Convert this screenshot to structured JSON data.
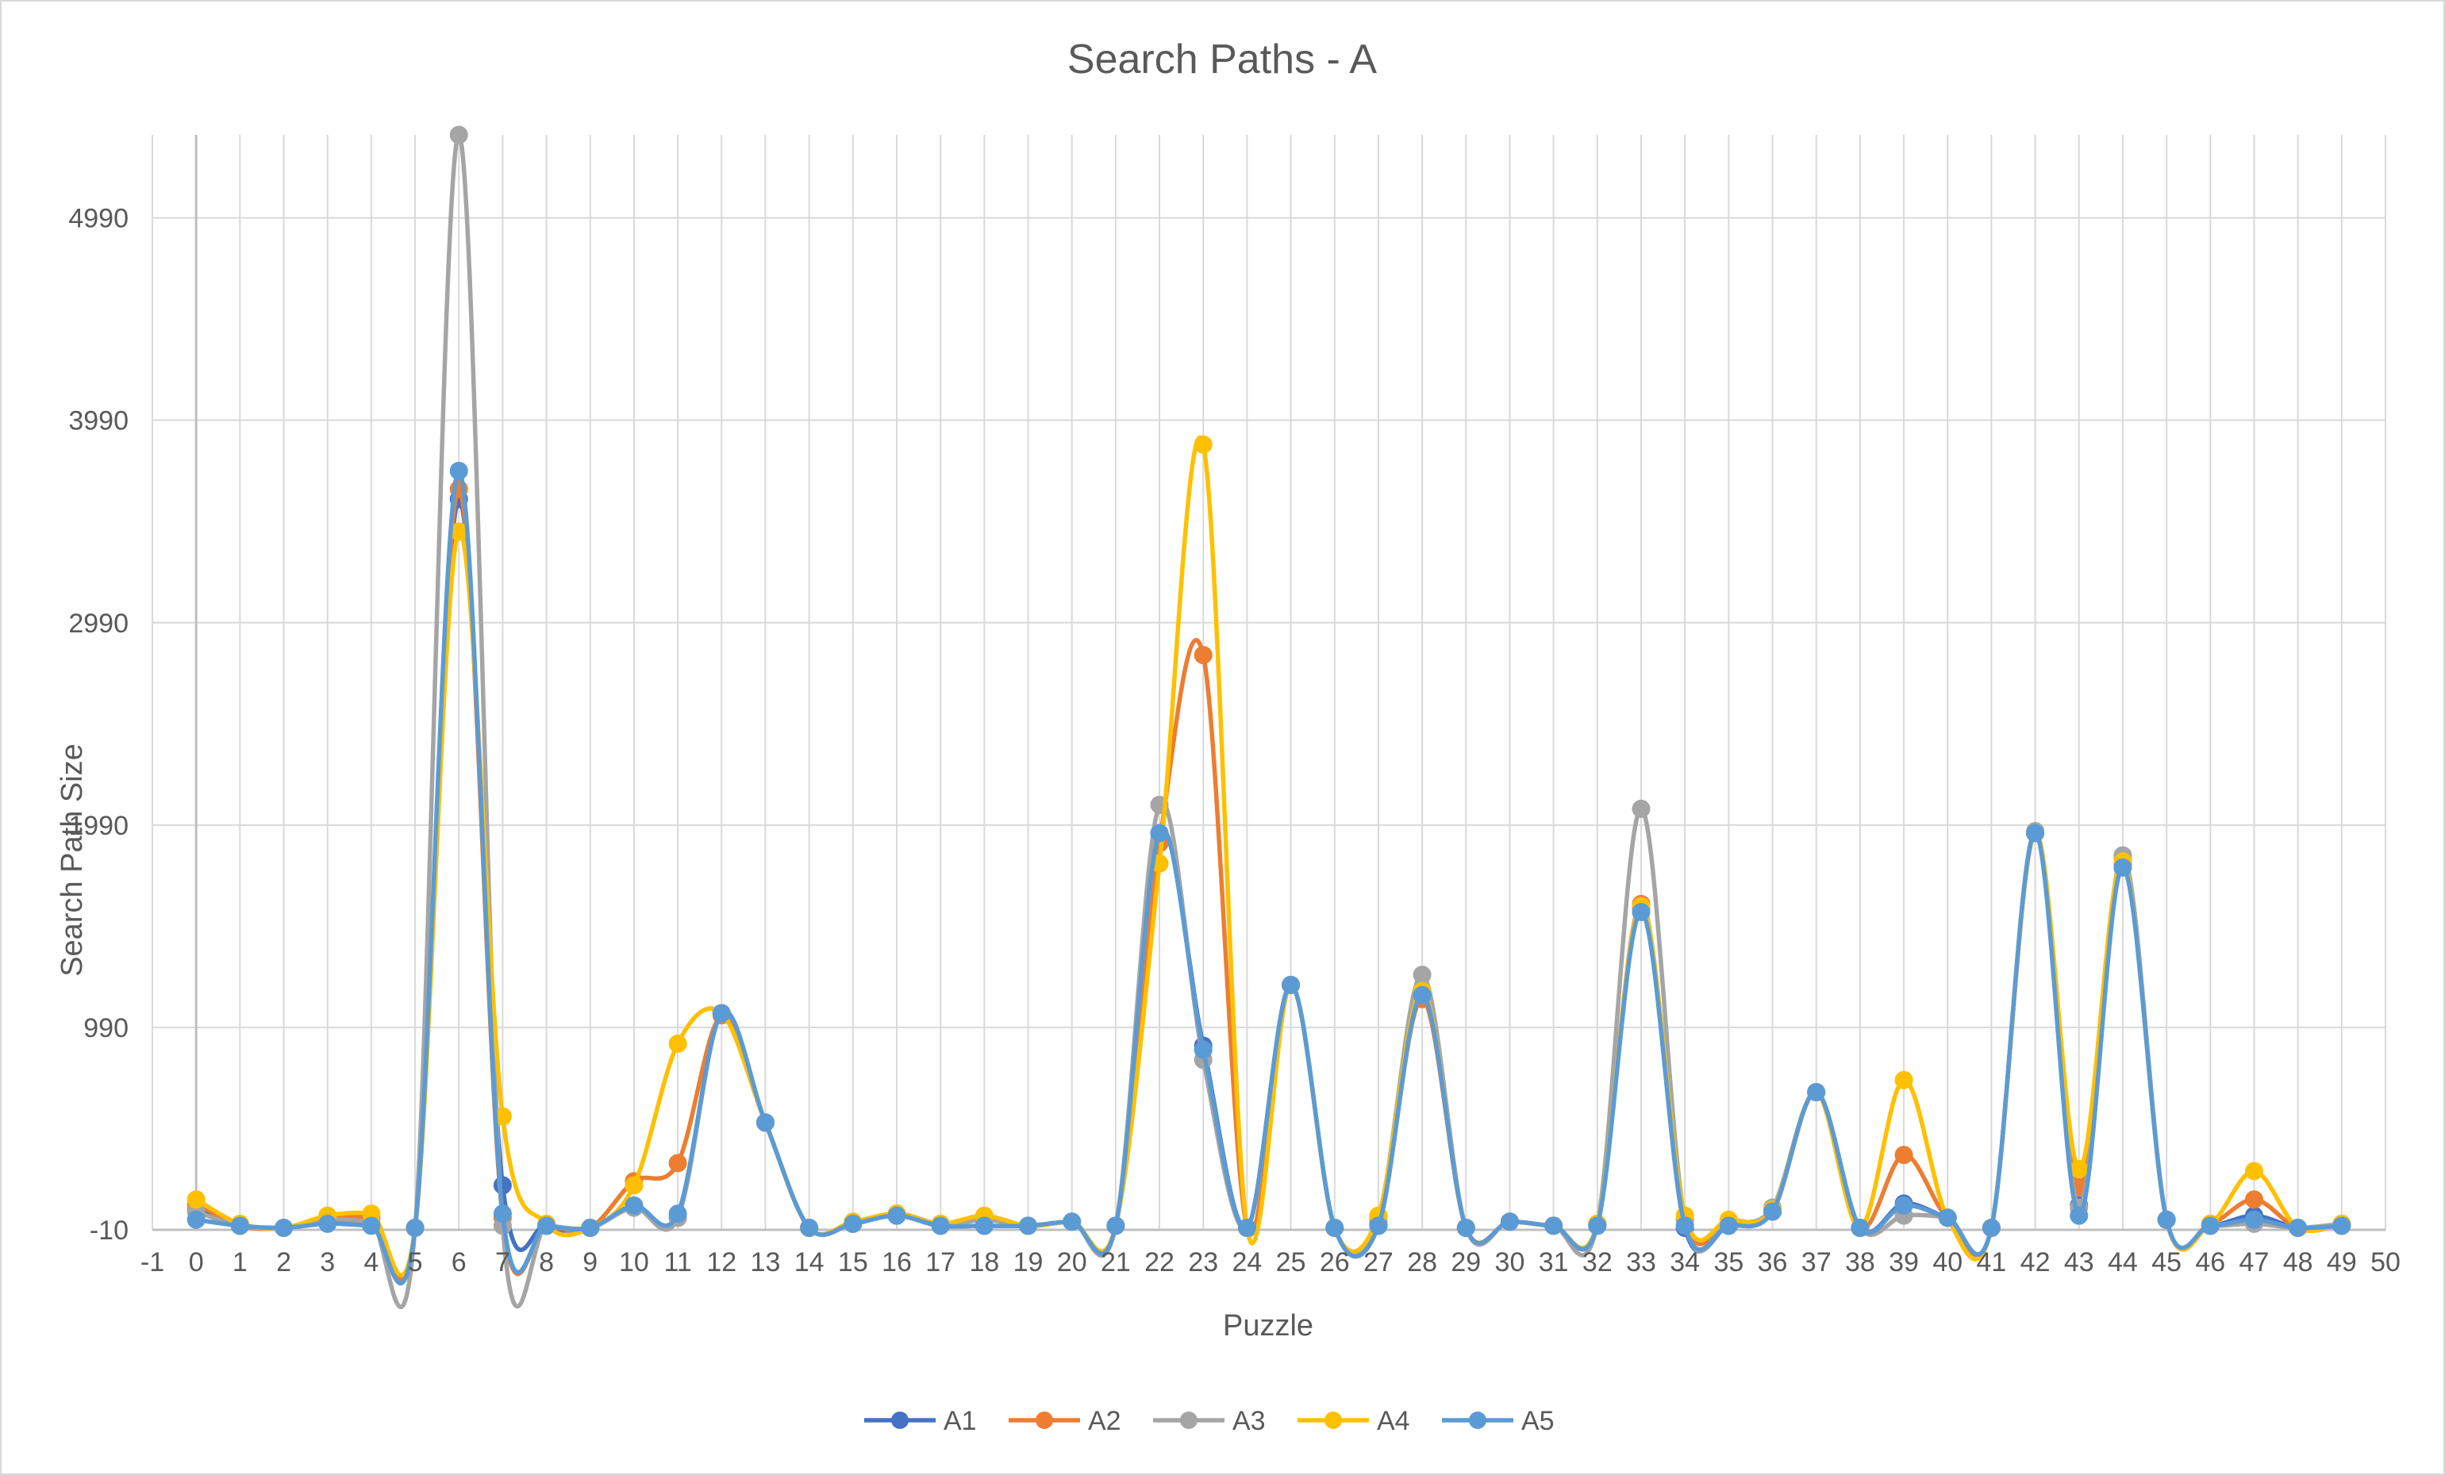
{
  "chart_data": {
    "type": "line",
    "smooth": true,
    "markers": true,
    "title": "Search Paths - A",
    "xlabel": "Puzzle",
    "ylabel": "Search Path Size",
    "xlim": [
      -1,
      50
    ],
    "xticks": [
      -1,
      0,
      1,
      2,
      3,
      4,
      5,
      6,
      7,
      8,
      9,
      10,
      11,
      12,
      13,
      14,
      15,
      16,
      17,
      18,
      19,
      20,
      21,
      22,
      23,
      24,
      25,
      26,
      27,
      28,
      29,
      30,
      31,
      32,
      33,
      34,
      35,
      36,
      37,
      38,
      39,
      40,
      41,
      42,
      43,
      44,
      45,
      46,
      47,
      48,
      49,
      50
    ],
    "ylim": [
      -10,
      5400
    ],
    "yticks": [
      -10,
      990,
      1990,
      2990,
      3990,
      4990
    ],
    "grid": true,
    "legend_position": "bottom",
    "x": [
      0,
      1,
      2,
      3,
      4,
      5,
      6,
      7,
      8,
      9,
      10,
      11,
      12,
      13,
      14,
      15,
      16,
      17,
      18,
      19,
      20,
      21,
      22,
      23,
      24,
      25,
      26,
      27,
      28,
      29,
      30,
      31,
      32,
      33,
      34,
      35,
      36,
      37,
      38,
      39,
      40,
      41,
      42,
      43,
      44,
      45,
      46,
      47,
      48,
      49
    ],
    "series": [
      {
        "name": "A1",
        "color": "#4472C4",
        "values": [
          90,
          10,
          0,
          30,
          20,
          0,
          3600,
          210,
          10,
          0,
          100,
          50,
          1060,
          520,
          0,
          20,
          60,
          10,
          10,
          10,
          30,
          10,
          1950,
          900,
          0,
          1200,
          0,
          10,
          1150,
          0,
          30,
          10,
          10,
          1580,
          0,
          10,
          80,
          670,
          0,
          120,
          50,
          0,
          1950,
          110,
          1800,
          40,
          10,
          60,
          0,
          10
        ]
      },
      {
        "name": "A2",
        "color": "#ED7D31",
        "values": [
          120,
          10,
          0,
          50,
          50,
          0,
          3650,
          50,
          10,
          0,
          230,
          320,
          1050,
          520,
          0,
          20,
          70,
          20,
          50,
          10,
          30,
          10,
          1900,
          2830,
          0,
          1200,
          0,
          30,
          1130,
          0,
          30,
          10,
          20,
          1600,
          40,
          30,
          80,
          670,
          0,
          360,
          50,
          0,
          1950,
          200,
          1820,
          40,
          20,
          140,
          0,
          20
        ]
      },
      {
        "name": "A3",
        "color": "#A5A5A5",
        "values": [
          80,
          10,
          0,
          40,
          30,
          0,
          5400,
          10,
          10,
          0,
          100,
          50,
          1060,
          520,
          0,
          20,
          60,
          10,
          40,
          10,
          30,
          10,
          2090,
          830,
          0,
          1200,
          0,
          50,
          1250,
          0,
          30,
          10,
          20,
          2070,
          40,
          30,
          100,
          670,
          0,
          60,
          50,
          0,
          1960,
          100,
          1840,
          40,
          10,
          20,
          0,
          20
        ]
      },
      {
        "name": "A4",
        "color": "#FFC000",
        "values": [
          140,
          20,
          0,
          60,
          70,
          0,
          3440,
          550,
          20,
          0,
          210,
          910,
          1060,
          520,
          0,
          30,
          70,
          20,
          60,
          10,
          30,
          10,
          1800,
          3870,
          0,
          1200,
          0,
          60,
          1170,
          0,
          30,
          10,
          20,
          1590,
          60,
          40,
          90,
          670,
          0,
          730,
          50,
          0,
          1950,
          290,
          1810,
          40,
          20,
          280,
          0,
          20
        ]
      },
      {
        "name": "A5",
        "color": "#5B9BD5",
        "values": [
          40,
          10,
          0,
          20,
          10,
          0,
          3740,
          70,
          10,
          0,
          110,
          70,
          1060,
          520,
          0,
          20,
          60,
          10,
          10,
          10,
          30,
          10,
          1950,
          880,
          0,
          1200,
          0,
          10,
          1150,
          0,
          30,
          10,
          10,
          1560,
          10,
          10,
          80,
          670,
          0,
          110,
          50,
          0,
          1950,
          60,
          1780,
          40,
          10,
          40,
          0,
          10
        ]
      }
    ]
  },
  "colors": {
    "grid": "#D9D9D9",
    "axis": "#BFBFBF",
    "text": "#595959",
    "border": "#D9D9D9"
  }
}
